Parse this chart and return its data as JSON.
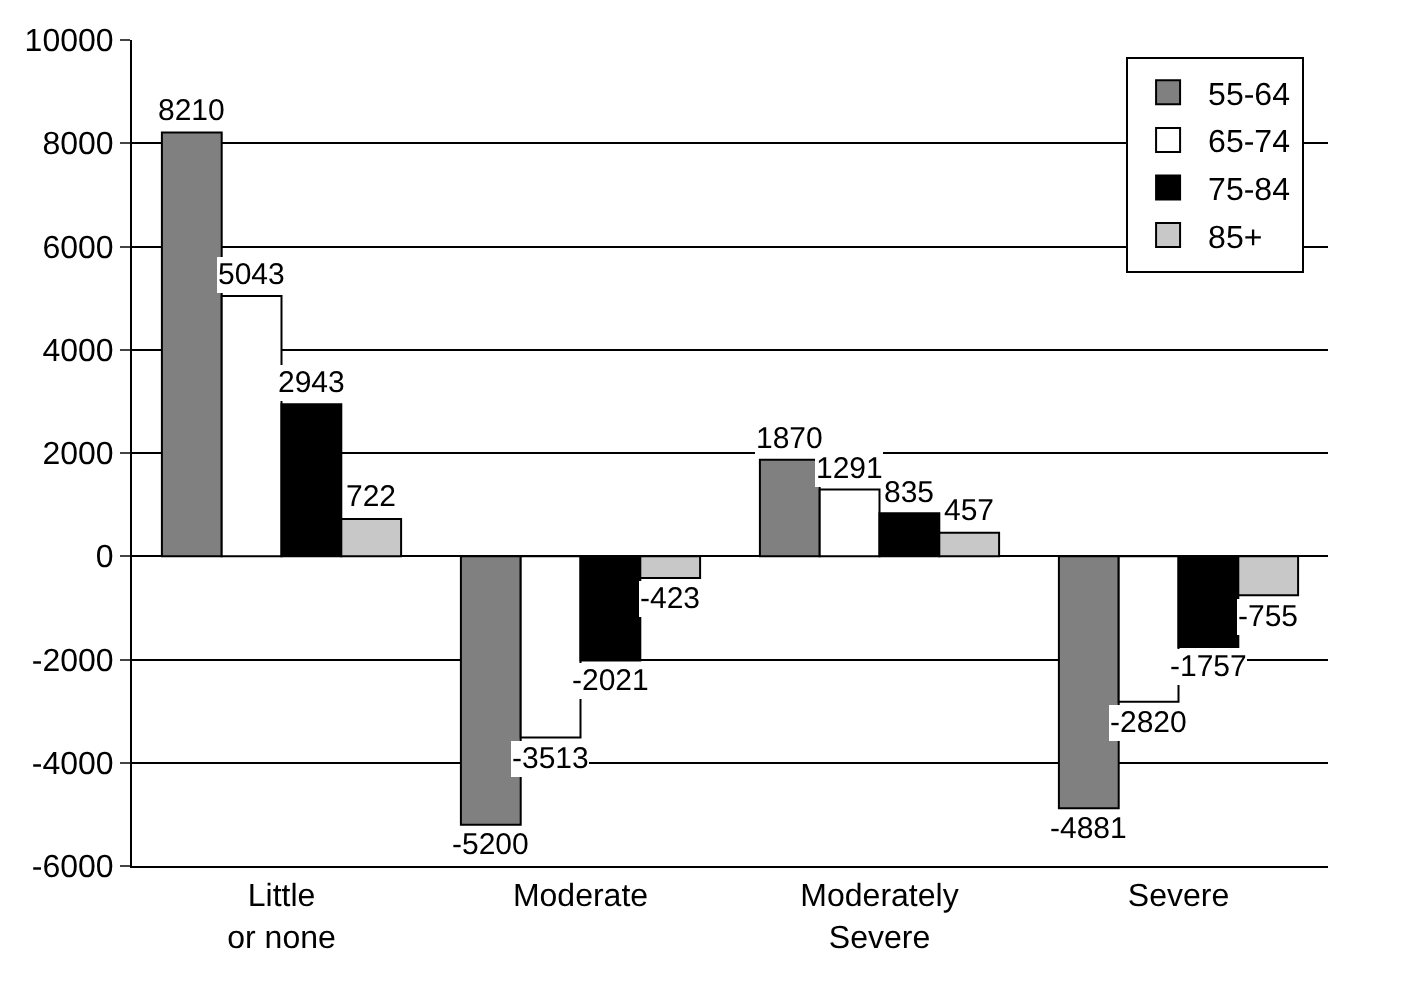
{
  "chart_data": {
    "type": "bar",
    "categories": [
      "Little or none",
      "Moderate",
      "Moderately Severe",
      "Severe"
    ],
    "series": [
      {
        "name": "55-64",
        "color": "#808080",
        "values": [
          8210,
          -5200,
          1870,
          -4881
        ]
      },
      {
        "name": "65-74",
        "color": "#ffffff",
        "values": [
          5043,
          -3513,
          1291,
          -2820
        ]
      },
      {
        "name": "75-84",
        "color": "#000000",
        "values": [
          2943,
          -2021,
          835,
          -1757
        ]
      },
      {
        "name": "85+",
        "color": "#c8c8c8",
        "values": [
          722,
          -423,
          457,
          -755
        ]
      }
    ],
    "ylim": [
      -6000,
      10000
    ],
    "yticks": [
      -6000,
      -4000,
      -2000,
      0,
      2000,
      4000,
      6000,
      8000,
      10000
    ],
    "grid": "y",
    "legend": "top right",
    "data_labels": true
  }
}
